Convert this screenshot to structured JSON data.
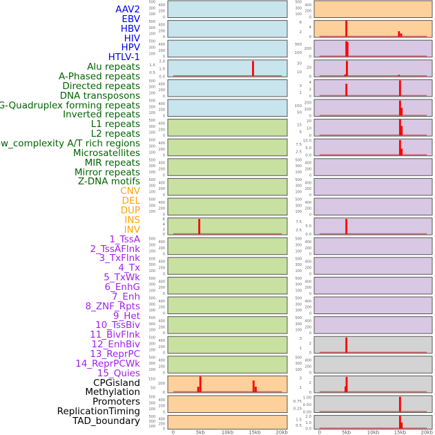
{
  "colors": {
    "virus": "#0000ee",
    "repeat": "#006400",
    "sv": "#ffa500",
    "chromatin": "#a020f0",
    "other": "#000000",
    "bg_virus": "#c8e4ec",
    "bg_repeat": "#c8e0a0",
    "bg_sv": "#fdd09c",
    "bg_chromatin": "#d8c8e4",
    "bg_other": "#d3d3d3",
    "bar": "#ff0000",
    "baseline": "#d06060"
  },
  "labels": [
    {
      "text": "AAV2",
      "group": "virus"
    },
    {
      "text": "EBV",
      "group": "virus"
    },
    {
      "text": "HBV",
      "group": "virus"
    },
    {
      "text": "HIV",
      "group": "virus"
    },
    {
      "text": "HPV",
      "group": "virus"
    },
    {
      "text": "HTLV-1",
      "group": "virus"
    },
    {
      "text": "Alu repeats",
      "group": "repeat"
    },
    {
      "text": "A-Phased repeats",
      "group": "repeat"
    },
    {
      "text": "Directed repeats",
      "group": "repeat"
    },
    {
      "text": "DNA transposons",
      "group": "repeat"
    },
    {
      "text": "G-Quadruplex forming repeats",
      "group": "repeat"
    },
    {
      "text": "Inverted repeats",
      "group": "repeat"
    },
    {
      "text": "L1 repeats",
      "group": "repeat"
    },
    {
      "text": "L2 repeats",
      "group": "repeat"
    },
    {
      "text": "Low_complexity A/T rich regions",
      "group": "repeat"
    },
    {
      "text": "Microsatellites",
      "group": "repeat"
    },
    {
      "text": "MIR repeats",
      "group": "repeat"
    },
    {
      "text": "Mirror repeats",
      "group": "repeat"
    },
    {
      "text": "Z-DNA motifs",
      "group": "repeat"
    },
    {
      "text": "CNV",
      "group": "sv"
    },
    {
      "text": "DEL",
      "group": "sv"
    },
    {
      "text": "DUP",
      "group": "sv"
    },
    {
      "text": "INS",
      "group": "sv"
    },
    {
      "text": "INV",
      "group": "sv"
    },
    {
      "text": "1_TssA",
      "group": "chromatin"
    },
    {
      "text": "2_TssAFlnk",
      "group": "chromatin"
    },
    {
      "text": "3_TxFlnk",
      "group": "chromatin"
    },
    {
      "text": "4_Tx",
      "group": "chromatin"
    },
    {
      "text": "5_TxWk",
      "group": "chromatin"
    },
    {
      "text": "6_EnhG",
      "group": "chromatin"
    },
    {
      "text": "7_Enh",
      "group": "chromatin"
    },
    {
      "text": "8_ZNF_Rpts",
      "group": "chromatin"
    },
    {
      "text": "9_Het",
      "group": "chromatin"
    },
    {
      "text": "10_TssBiv",
      "group": "chromatin"
    },
    {
      "text": "11_BivFlnk",
      "group": "chromatin"
    },
    {
      "text": "12_EnhBiv",
      "group": "chromatin"
    },
    {
      "text": "13_ReprPC",
      "group": "chromatin"
    },
    {
      "text": "14_ReprPCWk",
      "group": "chromatin"
    },
    {
      "text": "15_Quies",
      "group": "chromatin"
    },
    {
      "text": "CPGisland",
      "group": "other"
    },
    {
      "text": "Methylation",
      "group": "other"
    },
    {
      "text": "Promoters",
      "group": "other"
    },
    {
      "text": "ReplicationTiming",
      "group": "other"
    },
    {
      "text": "TAD_boundary",
      "group": "other"
    }
  ],
  "chart_data": {
    "type": "bar",
    "xlabel": "",
    "x_ticks": [
      "0",
      "5kb",
      "10kb",
      "15kb",
      "20kb"
    ],
    "x_tick_values": [
      0,
      5,
      10,
      15,
      20
    ],
    "xlim": [
      -1,
      21
    ],
    "default_yticks": [
      "0",
      "100",
      "200",
      "300",
      "400",
      "500"
    ],
    "columns": [
      [
        {
          "track": "AAV2",
          "bg": "virus"
        },
        {
          "track": "EBV",
          "bg": "virus"
        },
        {
          "track": "HBV",
          "bg": "virus"
        },
        {
          "track": "HIV",
          "bg": "virus",
          "yticks": [
            "0.0",
            "0.5",
            "1.0",
            "1.5",
            "2.0"
          ],
          "ymax": 2.0,
          "bars": [
            [
              14.7,
              2.0
            ]
          ]
        },
        {
          "track": "HPV",
          "bg": "virus"
        },
        {
          "track": "HTLV-1",
          "bg": "virus"
        },
        {
          "track": "Alu repeats",
          "bg": "repeat"
        },
        {
          "track": "A-Phased repeats",
          "bg": "repeat"
        },
        {
          "track": "Directed repeats",
          "bg": "repeat"
        },
        {
          "track": "DNA transposons",
          "bg": "repeat"
        },
        {
          "track": "G-Quadruplex forming repeats",
          "bg": "repeat"
        },
        {
          "track": "Inverted repeats",
          "bg": "repeat",
          "yticks": [
            "0",
            "2",
            "4",
            "6"
          ],
          "ymax": 6,
          "bars": [
            [
              4.8,
              6
            ]
          ]
        },
        {
          "track": "L1 repeats",
          "bg": "repeat"
        },
        {
          "track": "L2 repeats",
          "bg": "repeat"
        },
        {
          "track": "Low_complexity A/T rich regions",
          "bg": "repeat"
        },
        {
          "track": "Microsatellites",
          "bg": "repeat"
        },
        {
          "track": "MIR repeats",
          "bg": "repeat"
        },
        {
          "track": "Mirror repeats",
          "bg": "repeat"
        },
        {
          "track": "Z-DNA motifs",
          "bg": "repeat"
        },
        {
          "track": "CNV",
          "bg": "sv",
          "yticks": [
            "0",
            "50",
            "100",
            "150"
          ],
          "ymax": 170,
          "bars": [
            [
              4.6,
              60
            ],
            [
              5.0,
              175
            ],
            [
              14.8,
              130
            ],
            [
              15.2,
              60
            ]
          ]
        },
        {
          "track": "DEL",
          "bg": "sv"
        },
        {
          "track": "DUP",
          "bg": "sv",
          "short": true
        }
      ],
      [
        {
          "track": "INS",
          "bg": "sv"
        },
        {
          "track": "INV",
          "bg": "sv",
          "yticks": [
            "0",
            "2",
            "4",
            "6"
          ],
          "ymax": 6.2,
          "bars": [
            [
              5.0,
              6.5
            ],
            [
              14.8,
              2.2
            ],
            [
              15.2,
              1.3
            ]
          ]
        },
        {
          "track": "1_TssA",
          "bg": "chromatin",
          "yticks": [
            "0",
            "100",
            "200",
            "300"
          ],
          "ymax": 370,
          "bars": [
            [
              5.0,
              370
            ],
            [
              5.2,
              350
            ]
          ]
        },
        {
          "track": "2_TssAFlnk",
          "bg": "chromatin",
          "yticks": [
            "0",
            "10",
            "20",
            "30"
          ],
          "ymax": 35,
          "bars": [
            [
              4.8,
              4
            ],
            [
              5.1,
              35
            ],
            [
              14.8,
              3
            ]
          ]
        },
        {
          "track": "3_TxFlnk",
          "bg": "chromatin",
          "yticks": [
            "0",
            "1",
            "2",
            "3",
            "4"
          ],
          "ymax": 4.4,
          "bars": [
            [
              5.0,
              3.5
            ],
            [
              15.0,
              4.5
            ]
          ]
        },
        {
          "track": "4_Tx",
          "bg": "chromatin",
          "yticks": [
            "0",
            "50",
            "100",
            "150",
            "200"
          ],
          "ymax": 230,
          "bars": [
            [
              15.0,
              230
            ],
            [
              15.3,
              120
            ]
          ]
        },
        {
          "track": "5_TxWk",
          "bg": "chromatin",
          "yticks": [
            "0",
            "5",
            "10",
            "15",
            "20"
          ],
          "ymax": 21,
          "bars": [
            [
              15.0,
              22
            ],
            [
              15.3,
              13
            ]
          ]
        },
        {
          "track": "6_EnhG",
          "bg": "chromatin",
          "yticks": [
            "0.0",
            "2.5",
            "5.0",
            "7.5",
            "10.0"
          ],
          "ymax": 10.5,
          "bars": [
            [
              15.0,
              10.5
            ],
            [
              15.3,
              4.5
            ]
          ]
        },
        {
          "track": "7_Enh",
          "bg": "chromatin"
        },
        {
          "track": "8_ZNF_Rpts",
          "bg": "chromatin"
        },
        {
          "track": "9_Het",
          "bg": "chromatin"
        },
        {
          "track": "10_TssBiv",
          "bg": "chromatin",
          "yticks": [
            "0.0",
            "2.5",
            "5.0",
            "7.5"
          ],
          "ymax": 9,
          "bars": [
            [
              5.0,
              9
            ]
          ]
        },
        {
          "track": "11_BivFlnk",
          "bg": "chromatin"
        },
        {
          "track": "12_EnhBiv",
          "bg": "chromatin"
        },
        {
          "track": "13_ReprPC",
          "bg": "chromatin"
        },
        {
          "track": "14_ReprPCWk",
          "bg": "chromatin"
        },
        {
          "track": "15_Quies",
          "bg": "chromatin"
        },
        {
          "track": "CPGisland",
          "bg": "other",
          "yticks": [
            "0",
            "1",
            "2",
            "3"
          ],
          "ymax": 3.2,
          "bars": [
            [
              5.0,
              3.2
            ]
          ]
        },
        {
          "track": "Methylation",
          "bg": "other"
        },
        {
          "track": "Promoters",
          "bg": "other",
          "yticks": [
            "0",
            "1",
            "2",
            "3"
          ],
          "ymax": 3.2,
          "bars": [
            [
              4.85,
              1.2
            ],
            [
              5.05,
              3.2
            ]
          ]
        },
        {
          "track": "ReplicationTiming",
          "bg": "other",
          "yticks": [
            "0.00",
            "0.25",
            "0.50",
            "0.75",
            "1.00"
          ],
          "ymax": 1.05,
          "bars": [
            [
              15.0,
              1.05
            ]
          ]
        },
        {
          "track": "TAD_boundary",
          "bg": "other",
          "yticks": [
            "0.0",
            "0.5",
            "1.0",
            "1.5",
            "2.0"
          ],
          "ymax": 2.0,
          "bars": [
            [
              15.0,
              2.1
            ],
            [
              15.3,
              1.0
            ]
          ],
          "short": true
        }
      ]
    ]
  }
}
